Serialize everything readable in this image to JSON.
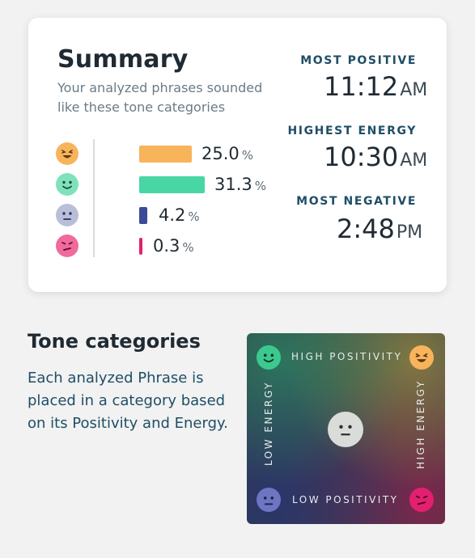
{
  "summary": {
    "title": "Summary",
    "subtitle": "Your analyzed phrases sounded like these tone categories",
    "tones": [
      {
        "icon": "happy-high-energy-face-icon",
        "color": "#f7b45b",
        "value": "25.0",
        "unit": "%",
        "fraction": 0.25
      },
      {
        "icon": "smile-face-icon",
        "color": "#48d6a5",
        "value": "31.3",
        "unit": "%",
        "fraction": 0.313
      },
      {
        "icon": "neutral-sad-face-icon",
        "color": "#3d4a98",
        "value": "4.2",
        "unit": "%",
        "fraction": 0.042
      },
      {
        "icon": "annoyed-face-icon",
        "color": "#e3206f",
        "value": "0.3",
        "unit": "%",
        "fraction": 0.003
      }
    ],
    "stats": [
      {
        "label": "MOST POSITIVE",
        "time": "11:12",
        "ampm": "AM"
      },
      {
        "label": "HIGHEST ENERGY",
        "time": "10:30",
        "ampm": "AM"
      },
      {
        "label": "MOST NEGATIVE",
        "time": "2:48",
        "ampm": "PM"
      }
    ]
  },
  "tone_categories": {
    "title": "Tone categories",
    "description": "Each analyzed Phrase is placed in a category based on its Positivity and Energy.",
    "grid": {
      "top_label": "HIGH POSITIVITY",
      "bottom_label": "LOW POSITIVITY",
      "left_label": "LOW ENERGY",
      "right_label": "HIGH ENERGY"
    }
  }
}
